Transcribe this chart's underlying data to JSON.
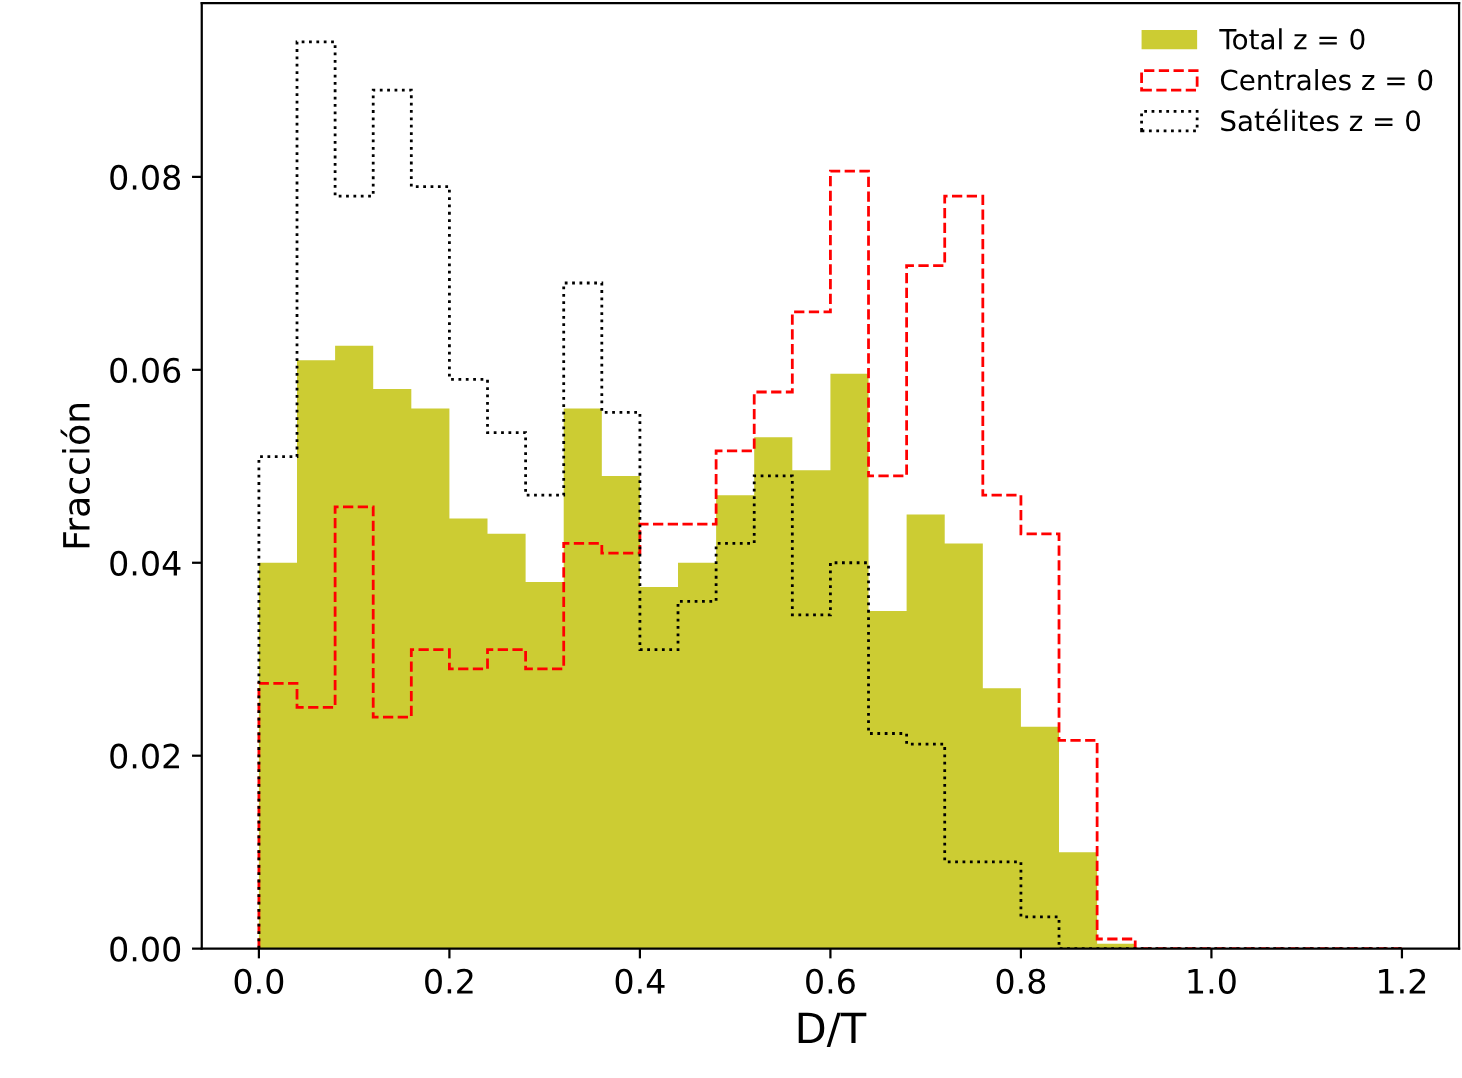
{
  "chart_data": {
    "type": "histogram",
    "xlabel": "D/T",
    "ylabel": "Fracción",
    "bins": [
      0.0,
      0.04,
      0.08,
      0.12,
      0.16,
      0.2,
      0.24,
      0.28,
      0.32,
      0.36,
      0.4,
      0.44,
      0.48,
      0.52,
      0.56,
      0.6,
      0.64,
      0.68,
      0.72,
      0.76,
      0.8,
      0.84,
      0.88,
      0.92,
      0.96,
      1.0,
      1.04,
      1.08,
      1.12,
      1.16,
      1.2
    ],
    "series": [
      {
        "name": "Total z = 0",
        "color": "#cccc33",
        "values": [
          0.04,
          0.061,
          0.0625,
          0.058,
          0.056,
          0.0446,
          0.043,
          0.038,
          0.056,
          0.049,
          0.0375,
          0.04,
          0.047,
          0.053,
          0.0496,
          0.0596,
          0.035,
          0.045,
          0.042,
          0.027,
          0.023,
          0.01,
          0.0005,
          0,
          0,
          0,
          0,
          0,
          0,
          0
        ]
      },
      {
        "name": "Centrales z = 0",
        "line_style": "dashed",
        "color": "#ff0000",
        "values": [
          0.0275,
          0.025,
          0.0458,
          0.024,
          0.031,
          0.029,
          0.031,
          0.029,
          0.042,
          0.041,
          0.044,
          0.044,
          0.0516,
          0.0577,
          0.066,
          0.0806,
          0.049,
          0.0708,
          0.078,
          0.047,
          0.043,
          0.0216,
          0.001,
          0,
          0,
          0,
          0,
          0,
          0,
          0
        ]
      },
      {
        "name": "Satélites z = 0",
        "line_style": "dotted",
        "color": "#000000",
        "values": [
          0.051,
          0.094,
          0.078,
          0.089,
          0.079,
          0.059,
          0.0535,
          0.047,
          0.069,
          0.0556,
          0.031,
          0.036,
          0.042,
          0.049,
          0.0346,
          0.04,
          0.0223,
          0.0212,
          0.009,
          0.009,
          0.0033,
          0,
          0,
          0,
          0,
          0,
          0,
          0,
          0,
          0
        ]
      }
    ],
    "xlim": [
      -0.06,
      1.26
    ],
    "ylim": [
      0,
      0.098
    ],
    "xticks": [
      {
        "value": 0,
        "label": "0.0"
      },
      {
        "value": 0.2,
        "label": "0.2"
      },
      {
        "value": 0.4,
        "label": "0.4"
      },
      {
        "value": 0.6,
        "label": "0.6"
      },
      {
        "value": 0.8,
        "label": "0.8"
      },
      {
        "value": 1.0,
        "label": "1.0"
      },
      {
        "value": 1.2,
        "label": "1.2"
      }
    ],
    "yticks": [
      {
        "value": 0,
        "label": "0.00"
      },
      {
        "value": 0.02,
        "label": "0.02"
      },
      {
        "value": 0.04,
        "label": "0.04"
      },
      {
        "value": 0.06,
        "label": "0.06"
      },
      {
        "value": 0.08,
        "label": "0.08"
      }
    ],
    "grid": false,
    "legend": "top right"
  }
}
